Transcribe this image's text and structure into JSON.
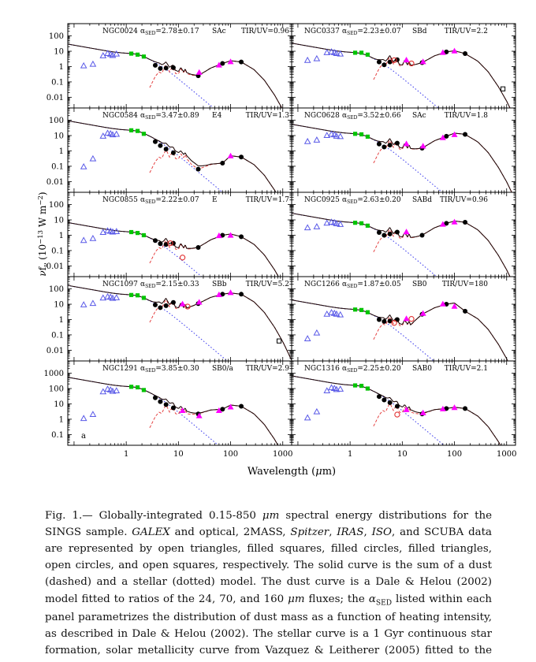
{
  "figure": {
    "x_axis_label_segments": [
      {
        "t": "Wavelength ("
      },
      {
        "t": "μ",
        "i": true
      },
      {
        "t": "m)"
      }
    ],
    "y_axis_label_segments": [
      {
        "t": "ν",
        "i": true
      },
      {
        "t": "f"
      },
      {
        "t": "ν",
        "sub": true,
        "i": true
      },
      {
        "t": " (10"
      },
      {
        "t": "−13",
        "sup": true
      },
      {
        "t": " W m"
      },
      {
        "t": "−2",
        "sup": true
      },
      {
        "t": ")"
      }
    ],
    "x_tick_labels": [
      "1",
      "10",
      "100",
      "1000"
    ],
    "y_tick_labels_rows_1_4": [
      "100",
      "10",
      "1",
      "0.1",
      "0.01"
    ],
    "y_tick_labels_row_5": [
      "1000",
      "100",
      "10",
      "1",
      "0.1"
    ],
    "colors": {
      "open_triangle": "#5a5ae8",
      "filled_square": "#00c400",
      "filled_circle": "#000000",
      "filled_triangle": "#ff00ff",
      "open_circle": "#e23030",
      "open_square": "#000000",
      "stellar_dotted": "#4444ee",
      "dust_dashed": "#e23030",
      "sum_solid": "#1c0404"
    },
    "legend_semantics": {
      "open_triangles": "GALEX and optical",
      "filled_squares": "2MASS",
      "filled_circles": "Spitzer",
      "filled_triangles": "IRAS",
      "open_circles": "ISO",
      "open_squares": "SCUBA",
      "solid_curve": "sum of dust and stellar models",
      "dashed_curve": "dust model (Dale & Helou 2002)",
      "dotted_curve": "stellar model (Vazquez & Leitherer 2005)"
    }
  },
  "chart_data": [
    {
      "type": "scatter",
      "name": "NGC0024",
      "alpha_sed": "2.78±0.17",
      "hubble_type": "SAc",
      "tir_uv": "0.96",
      "series": {
        "open_triangles": [
          [
            0.153,
            1.1
          ],
          [
            0.23,
            1.4
          ],
          [
            0.36,
            5.0
          ],
          [
            0.44,
            7.0
          ],
          [
            0.5,
            6.0
          ],
          [
            0.55,
            5.2
          ],
          [
            0.65,
            6.5
          ]
        ],
        "filled_squares": [
          [
            1.25,
            7.0
          ],
          [
            1.65,
            6.0
          ],
          [
            2.17,
            4.5
          ]
        ],
        "filled_circles": [
          [
            3.6,
            1.2
          ],
          [
            4.5,
            0.75
          ],
          [
            5.8,
            0.8
          ],
          [
            8.0,
            0.85
          ],
          [
            24,
            0.25
          ],
          [
            70,
            1.6
          ],
          [
            160,
            2.0
          ]
        ],
        "filled_triangles": [
          [
            25,
            0.4
          ],
          [
            60,
            1.2
          ],
          [
            100,
            2.0
          ]
        ],
        "open_circles": [],
        "open_squares": []
      }
    },
    {
      "type": "scatter",
      "name": "NGC0337",
      "alpha_sed": "2.23±0.07",
      "hubble_type": "SBd",
      "tir_uv": "2.2",
      "series": {
        "open_triangles": [
          [
            0.153,
            2.5
          ],
          [
            0.23,
            3.2
          ],
          [
            0.36,
            8.0
          ],
          [
            0.44,
            9.0
          ],
          [
            0.5,
            8.0
          ],
          [
            0.55,
            7.0
          ],
          [
            0.65,
            6.5
          ]
        ],
        "filled_squares": [
          [
            1.25,
            8.0
          ],
          [
            1.65,
            8.0
          ],
          [
            2.17,
            6.0
          ]
        ],
        "filled_circles": [
          [
            3.6,
            2.0
          ],
          [
            4.5,
            1.3
          ],
          [
            5.8,
            2.0
          ],
          [
            8.0,
            2.8
          ],
          [
            24,
            1.8
          ],
          [
            70,
            9.0
          ],
          [
            160,
            7.0
          ]
        ],
        "filled_triangles": [
          [
            12,
            2.6
          ],
          [
            25,
            2.0
          ],
          [
            60,
            8.0
          ],
          [
            100,
            10.0
          ]
        ],
        "open_circles": [
          [
            7,
            2.6
          ],
          [
            15,
            1.6
          ]
        ],
        "open_squares": [
          [
            850,
            0.035
          ]
        ]
      }
    },
    {
      "type": "scatter",
      "name": "NGC0584",
      "alpha_sed": "3.47±0.89",
      "hubble_type": "E4",
      "tir_uv": "1.3",
      "series": {
        "open_triangles": [
          [
            0.153,
            0.09
          ],
          [
            0.23,
            0.3
          ],
          [
            0.36,
            9.0
          ],
          [
            0.44,
            14.0
          ],
          [
            0.5,
            13.0
          ],
          [
            0.55,
            11.0
          ],
          [
            0.65,
            12.0
          ]
        ],
        "filled_squares": [
          [
            1.25,
            22.0
          ],
          [
            1.65,
            20.0
          ],
          [
            2.17,
            13.0
          ]
        ],
        "filled_circles": [
          [
            3.6,
            4.0
          ],
          [
            4.5,
            2.2
          ],
          [
            5.8,
            1.3
          ],
          [
            8.0,
            0.75
          ],
          [
            24,
            0.065
          ],
          [
            70,
            0.16
          ],
          [
            160,
            0.4
          ]
        ],
        "filled_triangles": [
          [
            100,
            0.45
          ]
        ],
        "open_circles": [],
        "open_squares": []
      }
    },
    {
      "type": "scatter",
      "name": "NGC0628",
      "alpha_sed": "3.52±0.66",
      "hubble_type": "SAc",
      "tir_uv": "1.8",
      "series": {
        "open_triangles": [
          [
            0.153,
            4.0
          ],
          [
            0.23,
            5.0
          ],
          [
            0.36,
            10.0
          ],
          [
            0.44,
            12.0
          ],
          [
            0.5,
            11.0
          ],
          [
            0.55,
            9.0
          ],
          [
            0.65,
            8.5
          ]
        ],
        "filled_squares": [
          [
            1.25,
            13.0
          ],
          [
            1.65,
            12.0
          ],
          [
            2.17,
            8.5
          ]
        ],
        "filled_circles": [
          [
            3.6,
            2.8
          ],
          [
            4.5,
            1.8
          ],
          [
            5.8,
            2.4
          ],
          [
            8.0,
            3.2
          ],
          [
            24,
            1.5
          ],
          [
            70,
            9.0
          ],
          [
            160,
            12.0
          ]
        ],
        "filled_triangles": [
          [
            12,
            2.8
          ],
          [
            25,
            2.0
          ],
          [
            60,
            7.0
          ],
          [
            100,
            11.0
          ]
        ],
        "open_circles": [],
        "open_squares": []
      }
    },
    {
      "type": "scatter",
      "name": "NGC0855",
      "alpha_sed": "2.22±0.07",
      "hubble_type": "E",
      "tir_uv": "1.7",
      "series": {
        "open_triangles": [
          [
            0.153,
            0.45
          ],
          [
            0.23,
            0.6
          ],
          [
            0.36,
            1.5
          ],
          [
            0.44,
            1.9
          ],
          [
            0.5,
            1.8
          ],
          [
            0.55,
            1.6
          ],
          [
            0.65,
            1.7
          ]
        ],
        "filled_squares": [
          [
            1.25,
            1.6
          ],
          [
            1.65,
            1.4
          ],
          [
            2.17,
            1.0
          ]
        ],
        "filled_circles": [
          [
            3.6,
            0.45
          ],
          [
            4.5,
            0.28
          ],
          [
            5.8,
            0.25
          ],
          [
            8.0,
            0.3
          ],
          [
            24,
            0.16
          ],
          [
            70,
            1.0
          ],
          [
            160,
            0.8
          ]
        ],
        "filled_triangles": [
          [
            60,
            0.9
          ],
          [
            100,
            0.95
          ]
        ],
        "open_circles": [
          [
            7,
            0.3
          ],
          [
            12,
            0.035
          ]
        ],
        "open_squares": []
      }
    },
    {
      "type": "scatter",
      "name": "NGC0925",
      "alpha_sed": "2.63±0.20",
      "hubble_type": "SABd",
      "tir_uv": "0.96",
      "series": {
        "open_triangles": [
          [
            0.153,
            3.0
          ],
          [
            0.23,
            3.5
          ],
          [
            0.36,
            6.0
          ],
          [
            0.44,
            7.0
          ],
          [
            0.5,
            6.5
          ],
          [
            0.55,
            5.5
          ],
          [
            0.65,
            5.0
          ]
        ],
        "filled_squares": [
          [
            1.25,
            6.5
          ],
          [
            1.65,
            6.0
          ],
          [
            2.17,
            4.2
          ]
        ],
        "filled_circles": [
          [
            3.6,
            1.5
          ],
          [
            4.5,
            1.0
          ],
          [
            5.8,
            1.2
          ],
          [
            8.0,
            1.6
          ],
          [
            24,
            1.0
          ],
          [
            70,
            6.0
          ],
          [
            160,
            7.0
          ]
        ],
        "filled_triangles": [
          [
            12,
            1.6
          ],
          [
            60,
            5.0
          ],
          [
            100,
            7.0
          ]
        ],
        "open_circles": [],
        "open_squares": []
      }
    },
    {
      "type": "scatter",
      "name": "NGC1097",
      "alpha_sed": "2.15±0.33",
      "hubble_type": "SBb",
      "tir_uv": "5.2",
      "series": {
        "open_triangles": [
          [
            0.153,
            9.0
          ],
          [
            0.23,
            11.0
          ],
          [
            0.36,
            25.0
          ],
          [
            0.44,
            30.0
          ],
          [
            0.5,
            28.0
          ],
          [
            0.55,
            24.0
          ],
          [
            0.65,
            26.0
          ]
        ],
        "filled_squares": [
          [
            1.25,
            40.0
          ],
          [
            1.65,
            38.0
          ],
          [
            2.17,
            26.0
          ]
        ],
        "filled_circles": [
          [
            3.6,
            9.0
          ],
          [
            4.5,
            6.0
          ],
          [
            5.8,
            8.0
          ],
          [
            8.0,
            13.0
          ],
          [
            24,
            11.0
          ],
          [
            70,
            45.0
          ],
          [
            160,
            45.0
          ]
        ],
        "filled_triangles": [
          [
            12,
            10.0
          ],
          [
            25,
            13.0
          ],
          [
            60,
            40.0
          ],
          [
            100,
            55.0
          ]
        ],
        "open_circles": [
          [
            15,
            7.0
          ]
        ],
        "open_squares": [
          [
            850,
            0.04
          ]
        ]
      }
    },
    {
      "type": "scatter",
      "name": "NGC1266",
      "alpha_sed": "1.87±0.05",
      "hubble_type": "SB0",
      "tir_uv": "180",
      "series": {
        "open_triangles": [
          [
            0.153,
            0.055
          ],
          [
            0.23,
            0.13
          ],
          [
            0.36,
            2.2
          ],
          [
            0.44,
            2.8
          ],
          [
            0.5,
            2.5
          ],
          [
            0.55,
            2.2
          ],
          [
            0.65,
            2.0
          ]
        ],
        "filled_squares": [
          [
            1.25,
            4.5
          ],
          [
            1.65,
            4.2
          ],
          [
            2.17,
            3.0
          ]
        ],
        "filled_circles": [
          [
            3.6,
            1.0
          ],
          [
            4.5,
            0.75
          ],
          [
            5.8,
            0.8
          ],
          [
            8.0,
            1.0
          ],
          [
            24,
            2.2
          ],
          [
            70,
            10.0
          ],
          [
            160,
            3.5
          ]
        ],
        "filled_triangles": [
          [
            12,
            1.1
          ],
          [
            25,
            2.4
          ],
          [
            60,
            10.0
          ],
          [
            100,
            7.0
          ]
        ],
        "open_circles": [
          [
            7,
            0.6
          ],
          [
            15,
            1.1
          ]
        ],
        "open_squares": []
      }
    },
    {
      "type": "scatter",
      "name": "NGC1291",
      "alpha_sed": "3.85±0.30",
      "hubble_type": "SB0/a",
      "tir_uv": "2.9",
      "corner_label": "a",
      "series": {
        "open_triangles": [
          [
            0.153,
            1.1
          ],
          [
            0.23,
            2.0
          ],
          [
            0.36,
            60.0
          ],
          [
            0.44,
            90.0
          ],
          [
            0.5,
            80.0
          ],
          [
            0.55,
            65.0
          ],
          [
            0.65,
            70.0
          ]
        ],
        "filled_squares": [
          [
            1.25,
            130.0
          ],
          [
            1.65,
            120.0
          ],
          [
            2.17,
            80.0
          ]
        ],
        "filled_circles": [
          [
            3.6,
            25.0
          ],
          [
            4.5,
            14.0
          ],
          [
            5.8,
            9.0
          ],
          [
            8.0,
            5.5
          ],
          [
            24,
            2.2
          ],
          [
            70,
            4.5
          ],
          [
            160,
            7.0
          ]
        ],
        "filled_triangles": [
          [
            12,
            3.5
          ],
          [
            25,
            1.6
          ],
          [
            60,
            3.5
          ],
          [
            100,
            6.0
          ]
        ],
        "open_circles": [],
        "open_squares": []
      }
    },
    {
      "type": "scatter",
      "name": "NGC1316",
      "alpha_sed": "2.25±0.20",
      "hubble_type": "SAB0",
      "tir_uv": "2.1",
      "series": {
        "open_triangles": [
          [
            0.153,
            1.2
          ],
          [
            0.23,
            3.0
          ],
          [
            0.36,
            70.0
          ],
          [
            0.44,
            110.0
          ],
          [
            0.5,
            100.0
          ],
          [
            0.55,
            85.0
          ],
          [
            0.65,
            90.0
          ]
        ],
        "filled_squares": [
          [
            1.25,
            160.0
          ],
          [
            1.65,
            150.0
          ],
          [
            2.17,
            100.0
          ]
        ],
        "filled_circles": [
          [
            3.6,
            30.0
          ],
          [
            4.5,
            18.0
          ],
          [
            5.8,
            12.0
          ],
          [
            8.0,
            7.0
          ],
          [
            24,
            2.2
          ],
          [
            70,
            5.0
          ],
          [
            160,
            5.0
          ]
        ],
        "filled_triangles": [
          [
            12,
            4.0
          ],
          [
            25,
            2.5
          ],
          [
            60,
            4.5
          ],
          [
            100,
            5.5
          ]
        ],
        "open_circles": [
          [
            8,
            2.0
          ]
        ],
        "open_squares": []
      }
    }
  ],
  "caption": {
    "segments": [
      {
        "t": "Fig. 1.— Globally-integrated 0.15-850 "
      },
      {
        "t": "μm",
        "i": true
      },
      {
        "t": " spectral energy distributions for the SINGS sample. "
      },
      {
        "t": "GALEX",
        "i": true
      },
      {
        "t": " and optical, 2MASS, "
      },
      {
        "t": "Spitzer",
        "i": true
      },
      {
        "t": ", "
      },
      {
        "t": "IRAS",
        "i": true
      },
      {
        "t": ", "
      },
      {
        "t": "ISO",
        "i": true
      },
      {
        "t": ", and SCUBA data are represented by open triangles, filled squares, filled circles, filled triangles, open circles, and open squares, respectively.  The solid curve is the sum of a dust (dashed) and a stellar (dotted) model. The dust curve is a Dale & Helou (2002) model fitted to ratios of the 24, 70, and 160 "
      },
      {
        "t": "μm",
        "i": true
      },
      {
        "t": " fluxes; the "
      },
      {
        "t": "α",
        "i": true
      },
      {
        "t": "SED",
        "sub": true
      },
      {
        "t": " listed within each panel parametrizes the distribution of dust mass as a function of heating intensity, as described in Dale & Helou (2002).  The stellar curve is a 1 Gyr continuous star formation, solar metallicity curve from Vazquez & Leitherer (2005) fitted to the 2MASS data (see § 4 for details)."
      }
    ]
  }
}
